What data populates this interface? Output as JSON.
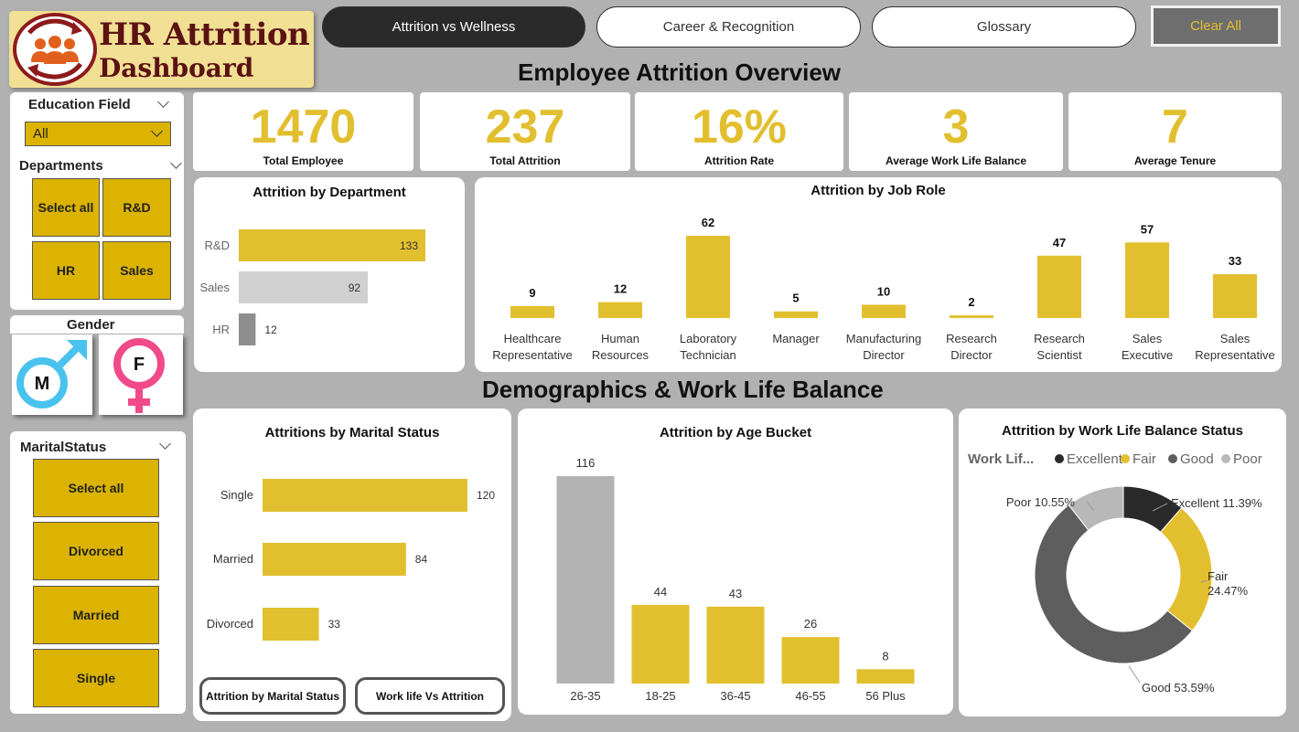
{
  "logo": {
    "line1": "HR Attrition",
    "line2": "Dashboard"
  },
  "nav": {
    "tabs": [
      {
        "label": "Attrition vs Wellness"
      },
      {
        "label": "Career & Recognition"
      },
      {
        "label": "Glossary"
      }
    ],
    "clear_label": "Clear All"
  },
  "sections": {
    "overview": "Employee Attrition Overview",
    "demographics": "Demographics & Work Life Balance"
  },
  "kpis": [
    {
      "value": "1470",
      "label": "Total Employee"
    },
    {
      "value": "237",
      "label": "Total Attrition"
    },
    {
      "value": "16%",
      "label": "Attrition Rate"
    },
    {
      "value": "3",
      "label": "Average Work Life Balance"
    },
    {
      "value": "7",
      "label": "Average Tenure"
    }
  ],
  "filters": {
    "education": {
      "title": "Education Field",
      "selected": "All"
    },
    "departments": {
      "title": "Departments",
      "options": [
        "Select all",
        "R&D",
        "HR",
        "Sales"
      ]
    },
    "gender": {
      "title": "Gender",
      "male": "M",
      "female": "F"
    },
    "marital": {
      "title": "MaritalStatus",
      "options": [
        "Select all",
        "Divorced",
        "Married",
        "Single"
      ]
    }
  },
  "colors": {
    "accent": "#e2bf2e",
    "tile": "#dbb300",
    "light_gray": "#d0d0d0",
    "mid_gray": "#8e8e8e",
    "dark_gray": "#5e5e5e",
    "black": "#2a2a2a",
    "bg": "#b1b1b1"
  },
  "buttons": {
    "marital": "Attrition by Marital Status",
    "worklife": "Work life Vs Attrition"
  },
  "chart_data": [
    {
      "type": "bar",
      "orientation": "horizontal",
      "title": "Attrition by Department",
      "categories": [
        "R&D",
        "Sales",
        "HR"
      ],
      "values": [
        133,
        92,
        12
      ],
      "xlim": [
        0,
        133
      ]
    },
    {
      "type": "bar",
      "title": "Attrition by Job Role",
      "categories": [
        [
          "Healthcare",
          "Representative"
        ],
        [
          "Human",
          "Resources"
        ],
        [
          "Laboratory",
          "Technician"
        ],
        [
          "Manager"
        ],
        [
          "Manufacturing",
          "Director"
        ],
        [
          "Research",
          "Director"
        ],
        [
          "Research",
          "Scientist"
        ],
        [
          "Sales",
          "Executive"
        ],
        [
          "Sales",
          "Representative"
        ]
      ],
      "values": [
        9,
        12,
        62,
        5,
        10,
        2,
        47,
        57,
        33
      ],
      "ylim": [
        0,
        62
      ]
    },
    {
      "type": "bar",
      "orientation": "horizontal",
      "title": "Attritions by Marital Status",
      "categories": [
        "Single",
        "Married",
        "Divorced"
      ],
      "values": [
        120,
        84,
        33
      ],
      "xlim": [
        0,
        120
      ]
    },
    {
      "type": "bar",
      "title": "Attrition by Age Bucket",
      "categories": [
        "26-35",
        "18-25",
        "36-45",
        "46-55",
        "56 Plus"
      ],
      "values": [
        116,
        44,
        43,
        26,
        8
      ],
      "ylim": [
        0,
        116
      ]
    },
    {
      "type": "pie",
      "donut": true,
      "title": "Attrition by Work Life Balance Status",
      "legend_title": "Work Lif...",
      "labels": [
        "Excellent",
        "Fair",
        "Good",
        "Poor"
      ],
      "values": [
        11.39,
        24.47,
        53.59,
        10.55
      ],
      "value_labels": [
        "Excellent 11.39%",
        "Fair 24.47%",
        "Good 53.59%",
        "Poor 10.55%"
      ],
      "legend": "top"
    }
  ]
}
